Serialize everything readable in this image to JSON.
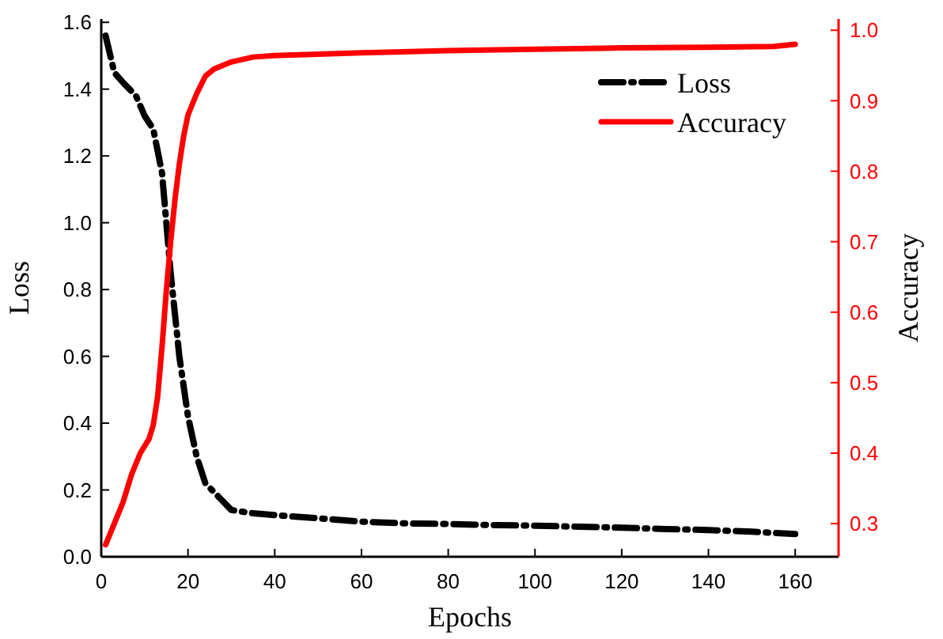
{
  "chart_data": {
    "type": "line",
    "xlabel": "Epochs",
    "ylabel": "Loss",
    "y2label": "Accuracy",
    "xlim": [
      0,
      170
    ],
    "xticks": [
      0,
      20,
      40,
      60,
      80,
      100,
      120,
      140,
      160
    ],
    "ylim": [
      0,
      1.61
    ],
    "yticks": [
      {
        "value": 0,
        "label": "0.0"
      },
      0.2,
      0.4,
      0.6,
      0.8,
      {
        "value": 1,
        "label": "1.0"
      },
      1.2,
      1.4,
      1.6
    ],
    "y2lim": [
      0.253,
      1.016
    ],
    "y2ticks": [
      0.3,
      0.4,
      0.5,
      0.6,
      0.7,
      0.8,
      0.9,
      {
        "value": 1,
        "label": "1.0"
      }
    ],
    "legend": "top right",
    "grid": false,
    "series": [
      {
        "name": "Loss",
        "color": "#000000",
        "line_style": "dashed",
        "x": [
          1,
          3,
          5,
          8,
          10,
          12,
          14,
          16,
          18,
          20,
          22,
          24,
          27,
          30,
          35,
          40,
          50,
          60,
          70,
          80,
          90,
          100,
          110,
          120,
          130,
          140,
          150,
          160
        ],
        "values": [
          1.56,
          1.45,
          1.42,
          1.38,
          1.32,
          1.28,
          1.15,
          0.85,
          0.6,
          0.42,
          0.3,
          0.22,
          0.18,
          0.14,
          0.13,
          0.125,
          0.115,
          0.105,
          0.1,
          0.098,
          0.095,
          0.093,
          0.09,
          0.087,
          0.083,
          0.08,
          0.075,
          0.068
        ]
      },
      {
        "name": "Accuracy",
        "color": "#ff0000",
        "line_style": "solid",
        "axis": "y2",
        "x": [
          1,
          3,
          5,
          7,
          9,
          11,
          12,
          13,
          14,
          15,
          16,
          17,
          18,
          19,
          20,
          22,
          24,
          26,
          28,
          30,
          35,
          40,
          60,
          80,
          100,
          120,
          140,
          155,
          160
        ],
        "values": [
          0.27,
          0.3,
          0.33,
          0.37,
          0.4,
          0.42,
          0.44,
          0.48,
          0.55,
          0.63,
          0.7,
          0.76,
          0.81,
          0.85,
          0.88,
          0.91,
          0.935,
          0.945,
          0.95,
          0.955,
          0.962,
          0.964,
          0.968,
          0.971,
          0.973,
          0.975,
          0.976,
          0.977,
          0.98
        ]
      }
    ]
  }
}
